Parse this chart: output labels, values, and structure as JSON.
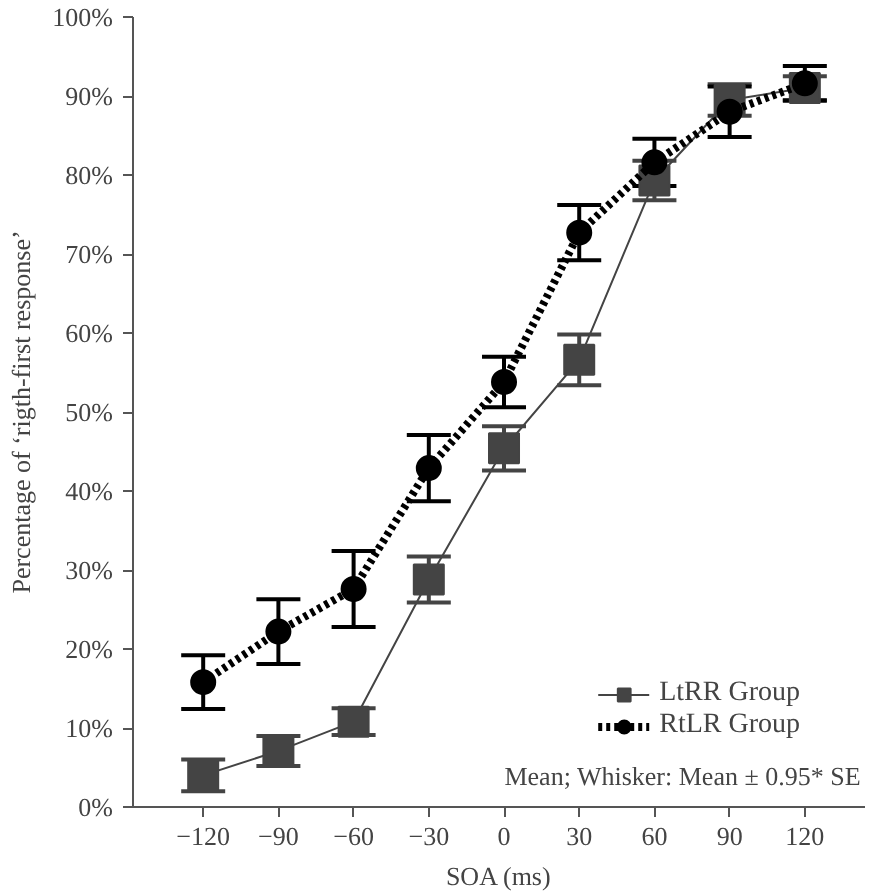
{
  "chart_data": {
    "type": "line",
    "xlabel": "SOA (ms)",
    "ylabel": "Percentage of ‘rigth-first response’",
    "x": [
      -120,
      -90,
      -60,
      -30,
      0,
      30,
      60,
      90,
      120
    ],
    "xlim": [
      -148,
      144
    ],
    "xticks": [
      -120,
      -90,
      -60,
      -30,
      0,
      30,
      60,
      90,
      120
    ],
    "ylim": [
      0,
      100
    ],
    "yticks": [
      {
        "value": 0,
        "label": "0%"
      },
      {
        "value": 10,
        "label": "10%"
      },
      {
        "value": 20,
        "label": "20%"
      },
      {
        "value": 30,
        "label": "30%"
      },
      {
        "value": 40,
        "label": "40%"
      },
      {
        "value": 50,
        "label": "50%"
      },
      {
        "value": 60,
        "label": "60%"
      },
      {
        "value": 70,
        "label": "70%"
      },
      {
        "value": 80,
        "label": "80%"
      },
      {
        "value": 90,
        "label": "90%"
      },
      {
        "value": 100,
        "label": "100%"
      }
    ],
    "series": [
      {
        "name": "LtRR Group",
        "color": "#444444",
        "marker": "square",
        "line_style": "solid",
        "values": [
          4,
          7.1,
          10.8,
          28.8,
          45.4,
          56.6,
          79.3,
          89.5,
          91
        ],
        "errors": [
          2,
          1.9,
          1.7,
          2.9,
          2.8,
          3.2,
          2.5,
          2,
          1.5
        ]
      },
      {
        "name": "RtLR Group",
        "color": "#000000",
        "marker": "circle",
        "line_style": "dotted",
        "values": [
          15.8,
          22.2,
          27.6,
          42.9,
          53.8,
          72.7,
          81.6,
          88,
          91.6
        ],
        "errors": [
          3.4,
          4.1,
          4.8,
          4.2,
          3.2,
          3.5,
          3,
          3.2,
          2.2
        ]
      }
    ],
    "legend": "bottom right",
    "grid": false,
    "annotations": [
      "Mean; Whisker: Mean ± 0.95* SE"
    ]
  }
}
